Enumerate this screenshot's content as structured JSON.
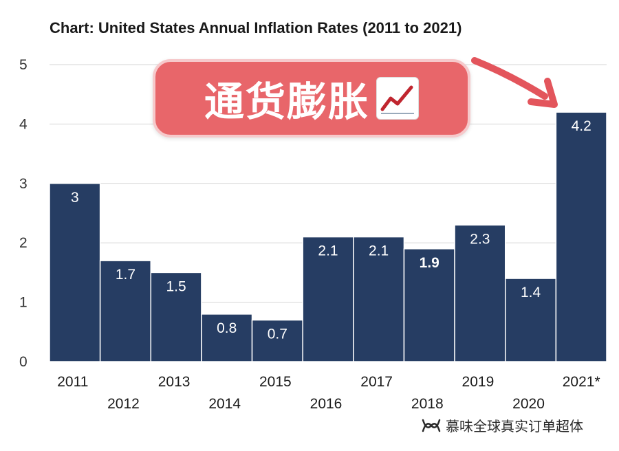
{
  "chart_data": {
    "type": "bar",
    "title": "Chart: United States Annual Inflation Rates (2011 to 2021)",
    "categories": [
      "2011",
      "2012",
      "2013",
      "2014",
      "2015",
      "2016",
      "2017",
      "2018",
      "2019",
      "2020",
      "2021*"
    ],
    "values": [
      3,
      1.7,
      1.5,
      0.8,
      0.7,
      2.1,
      2.1,
      1.9,
      2.3,
      1.4,
      4.2
    ],
    "data_labels": [
      "3",
      "1.7",
      "1.5",
      "0.8",
      "0.7",
      "2.1",
      "2.1",
      "1.9",
      "2.3",
      "1.4",
      "4.2"
    ],
    "ylim": [
      0,
      5
    ],
    "yticks": [
      0,
      1,
      2,
      3,
      4,
      5
    ],
    "ytick_labels": [
      "0",
      "1",
      "2",
      "3",
      "4",
      "5"
    ],
    "grid": true,
    "bar_color": "#263d63",
    "legend": "none"
  },
  "overlay": {
    "sticker_text": "通货膨胀",
    "sticker_icon": "chart-increasing-icon",
    "sticker_color": "#e8666a",
    "arrow_icon": "arrow-down-right-icon",
    "arrow_color": "#e3555c"
  },
  "watermark": {
    "text": "慕味全球真实订单超体",
    "icon": "wechat-channel-icon"
  }
}
